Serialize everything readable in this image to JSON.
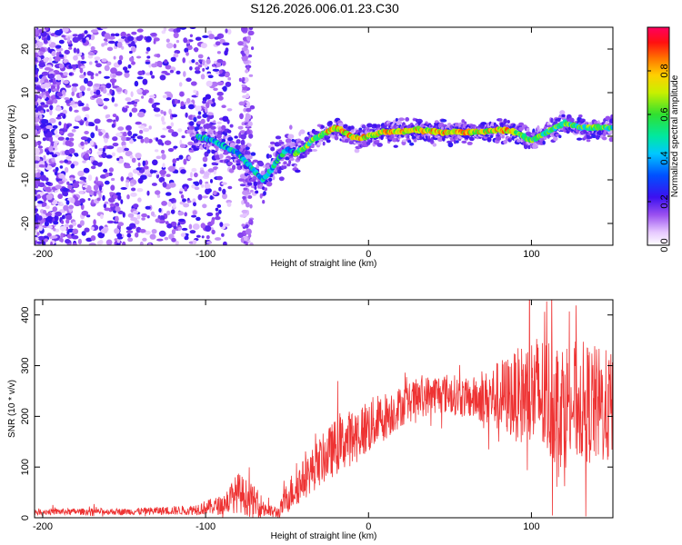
{
  "title": "S126.2026.006.01.23.C30",
  "colors": {
    "trace": "#ee3333",
    "frame": "#000000"
  },
  "chart_data": [
    {
      "type": "heatmap",
      "xlabel": "Height of straight line (km)",
      "ylabel": "Frequency (Hz)",
      "xlim": [
        -205,
        150
      ],
      "ylim": [
        -25,
        25
      ],
      "xticks": [
        -200,
        -100,
        0,
        100
      ],
      "xtick_labels": [
        "-200",
        "-100",
        "0",
        "100"
      ],
      "yticks": [
        -20,
        -10,
        0,
        10,
        20
      ],
      "ytick_labels": [
        "-20",
        "-10",
        "0",
        "10",
        "20"
      ],
      "ridge_x": [
        -105,
        -95,
        -85,
        -80,
        -75,
        -70,
        -65,
        -60,
        -55,
        -50,
        -45,
        -40,
        -35,
        -30,
        -25,
        -20,
        -15,
        -10,
        -5,
        0,
        10,
        20,
        30,
        40,
        50,
        60,
        70,
        80,
        90,
        95,
        100,
        110,
        120,
        130,
        140,
        150
      ],
      "ridge_y": [
        0,
        -1,
        -3,
        -4,
        -6,
        -8,
        -10,
        -8,
        -5,
        -3,
        -4,
        -3,
        -1,
        0,
        1,
        2,
        1,
        0,
        -0.5,
        0,
        1,
        1,
        1.5,
        1,
        1,
        1,
        1,
        1.5,
        1,
        0,
        -1,
        1,
        3,
        2,
        2,
        2
      ],
      "colorbar": {
        "label": "Normalized spectral amplitude",
        "range": [
          0,
          1
        ],
        "ticks": [
          0.0,
          0.2,
          0.4,
          0.6,
          0.8
        ],
        "tick_labels": [
          "0.0",
          "0.2",
          "0.4",
          "0.6",
          "0.8"
        ]
      }
    },
    {
      "type": "line",
      "xlabel": "Height of straight line (km)",
      "ylabel": "SNR (10 * v/v)",
      "xlim": [
        -205,
        150
      ],
      "ylim": [
        0,
        430
      ],
      "xticks": [
        -200,
        -100,
        0,
        100
      ],
      "xtick_labels": [
        "-200",
        "-100",
        "0",
        "100"
      ],
      "yticks": [
        0,
        100,
        200,
        300,
        400
      ],
      "ytick_labels": [
        "0",
        "100",
        "200",
        "300",
        "400"
      ],
      "envelope_x": [
        -205,
        -150,
        -110,
        -90,
        -80,
        -70,
        -60,
        -55,
        -50,
        -45,
        -40,
        -30,
        -20,
        -10,
        0,
        10,
        20,
        30,
        40,
        50,
        60,
        70,
        80,
        90,
        100,
        110,
        120,
        130,
        140,
        150
      ],
      "envelope_y": [
        12,
        12,
        15,
        25,
        50,
        30,
        12,
        10,
        40,
        60,
        75,
        110,
        140,
        160,
        180,
        200,
        220,
        235,
        245,
        245,
        235,
        235,
        240,
        240,
        245,
        235,
        225,
        230,
        220,
        215
      ],
      "noise_amp": [
        4,
        4,
        6,
        12,
        25,
        20,
        8,
        8,
        20,
        25,
        25,
        30,
        35,
        35,
        35,
        30,
        25,
        25,
        25,
        25,
        25,
        30,
        45,
        55,
        75,
        80,
        80,
        75,
        75,
        70
      ]
    }
  ]
}
